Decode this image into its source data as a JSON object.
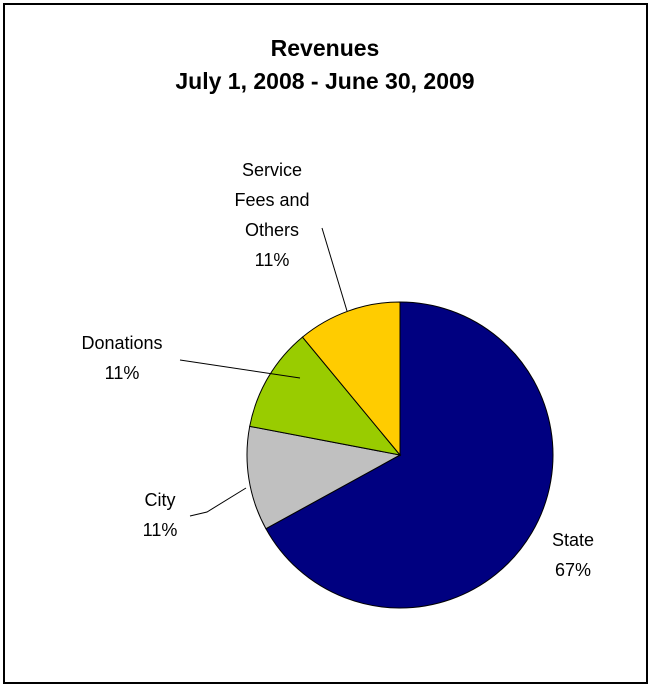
{
  "chart_data": {
    "type": "pie",
    "title": "Revenues",
    "subtitle": "July 1, 2008 - June 30, 2009",
    "categories": [
      "State",
      "City",
      "Donations",
      "Service Fees and Others"
    ],
    "values": [
      67,
      11,
      11,
      11
    ],
    "value_labels": [
      "67%",
      "11%",
      "11%",
      "11%"
    ],
    "colors": [
      "#000080",
      "#c0c0c0",
      "#99cc00",
      "#ffcc00"
    ]
  }
}
